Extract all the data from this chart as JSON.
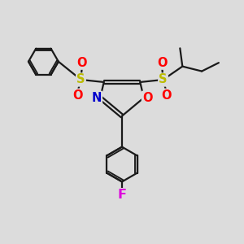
{
  "bg_color": "#dcdcdc",
  "bond_color": "#1a1a1a",
  "bond_width": 1.6,
  "atom_colors": {
    "S": "#bbbb00",
    "O": "#ff0000",
    "N": "#0000cc",
    "F": "#dd00dd",
    "C": "#1a1a1a"
  },
  "font_size_atom": 10.5
}
